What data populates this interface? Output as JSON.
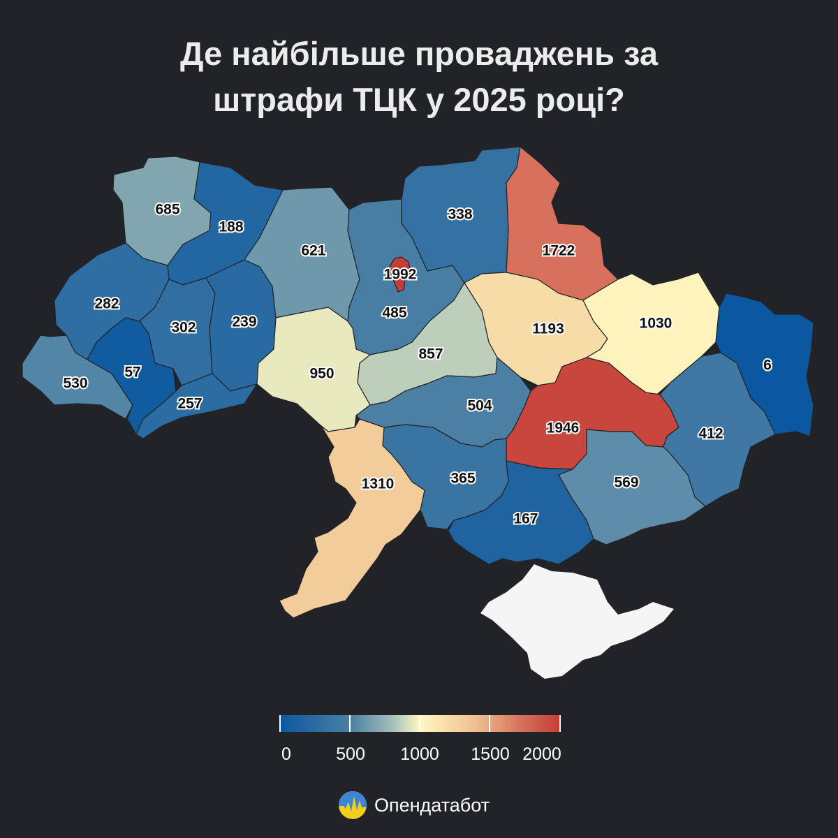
{
  "title": {
    "line1": "Де найбільше проваджень за",
    "line2": "штрафи ТЦК у 2025 році?"
  },
  "regions": [
    {
      "id": "volyn",
      "value": 685
    },
    {
      "id": "rivne",
      "value": 188
    },
    {
      "id": "lviv",
      "value": 282
    },
    {
      "id": "ternopil",
      "value": 302
    },
    {
      "id": "khmelnytskyi",
      "value": 239
    },
    {
      "id": "zakarpattia",
      "value": 530
    },
    {
      "id": "ivano-frankivsk",
      "value": 57
    },
    {
      "id": "chernivtsi",
      "value": 257
    },
    {
      "id": "zhytomyr",
      "value": 621
    },
    {
      "id": "kyiv-oblast",
      "value": 485
    },
    {
      "id": "kyiv-city",
      "value": 1992
    },
    {
      "id": "chernihiv",
      "value": 338
    },
    {
      "id": "sumy",
      "value": 1722
    },
    {
      "id": "poltava",
      "value": 1193
    },
    {
      "id": "kharkiv",
      "value": 1030
    },
    {
      "id": "luhansk",
      "value": 6
    },
    {
      "id": "vinnytsia",
      "value": 950
    },
    {
      "id": "cherkasy",
      "value": 857
    },
    {
      "id": "kirovohrad",
      "value": 504
    },
    {
      "id": "dnipropetrovsk",
      "value": 1946
    },
    {
      "id": "donetsk",
      "value": 412
    },
    {
      "id": "zaporizhzhia",
      "value": 569
    },
    {
      "id": "mykolaiv",
      "value": 365
    },
    {
      "id": "odesa",
      "value": 1310
    },
    {
      "id": "kherson",
      "value": 167
    }
  ],
  "crimea_color": "#f5f5f5",
  "legend": {
    "min": 0,
    "max": 2000,
    "ticks": [
      "0",
      "500",
      "1000",
      "1500",
      "2000"
    ],
    "colors": [
      "#0a57a0",
      "#4a7fa4",
      "#a3beb8",
      "#fff7c0",
      "#eebf8e",
      "#d8745f",
      "#c43c35"
    ]
  },
  "brand": {
    "name": "Опендатабот",
    "icon": "opendatabot-logo-icon"
  }
}
